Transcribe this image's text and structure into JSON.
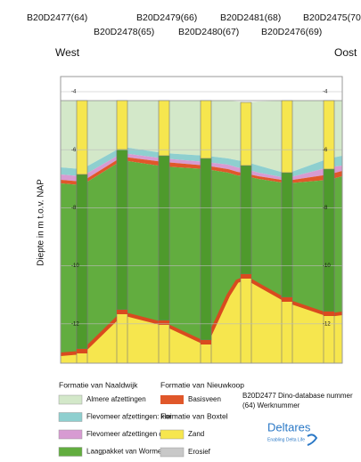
{
  "boreholes_top": [
    "B20D2477(64)",
    "B20D2479(66)",
    "B20D2481(68)",
    "B20D2475(70)"
  ],
  "boreholes_bottom": [
    "B20D2478(65)",
    "B20D2480(67)",
    "B20D2476(69)"
  ],
  "west": "West",
  "east": "Oost",
  "y_axis_label": "Diepte in m t.o.v. NAP",
  "ticks": [
    -4,
    -6,
    -8,
    -10,
    -12
  ],
  "legend": {
    "naaldwijk": {
      "title": "Formatie van Naaldwijk",
      "items": [
        "Almere afzettingen",
        "Flevomeer afzettingen: klei",
        "Flevomeer afzettingen detritus",
        "Laagpakket van Wormer"
      ]
    },
    "nieuwkoop": {
      "title": "Formatie van Nieuwkoop",
      "items": [
        "Basisveen"
      ]
    },
    "boxtel": {
      "title": "Formatie van Boxtel",
      "items": [
        "Zand",
        "Erosief"
      ]
    },
    "note": [
      "B20D2477 Dino-database nummer",
      "(64) Werknummer"
    ]
  },
  "logo": {
    "name": "Deltares",
    "tagline": "Enabling Delta Life"
  }
}
